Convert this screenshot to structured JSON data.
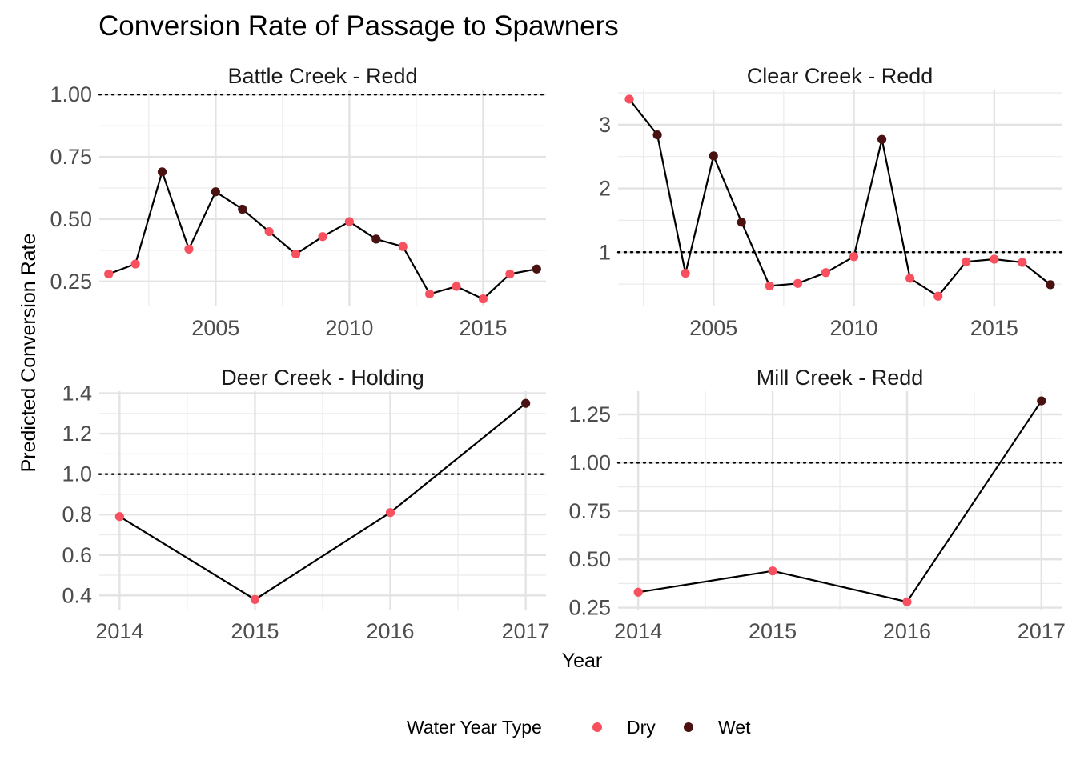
{
  "chart_data": {
    "type": "line",
    "title": "Conversion Rate of Passage to Spawners",
    "xlabel": "Year",
    "ylabel": "Predicted Conversion Rate",
    "reference_line": 1.0,
    "legend": {
      "title": "Water Year Type",
      "position": "bottom",
      "entries": [
        {
          "name": "Dry",
          "color": "#f8505e"
        },
        {
          "name": "Wet",
          "color": "#4a1111"
        }
      ]
    },
    "line_color": "#000000",
    "grid": true,
    "panels": [
      {
        "strip": "Battle Creek - Redd",
        "xlim": [
          2000.65,
          2017.35
        ],
        "ylim": [
          0.15,
          1.02
        ],
        "x_ticks": [
          2005,
          2010,
          2015
        ],
        "x_tick_labels": [
          "2005",
          "2010",
          "2015"
        ],
        "y_ticks": [
          0.25,
          0.5,
          0.75,
          1.0
        ],
        "y_tick_labels": [
          "0.25",
          "0.50",
          "0.75",
          "1.00"
        ],
        "points": [
          {
            "x": 2001,
            "y": 0.28,
            "type": "Dry"
          },
          {
            "x": 2002,
            "y": 0.32,
            "type": "Dry"
          },
          {
            "x": 2003,
            "y": 0.69,
            "type": "Wet"
          },
          {
            "x": 2004,
            "y": 0.38,
            "type": "Dry"
          },
          {
            "x": 2005,
            "y": 0.61,
            "type": "Wet"
          },
          {
            "x": 2006,
            "y": 0.54,
            "type": "Wet"
          },
          {
            "x": 2007,
            "y": 0.45,
            "type": "Dry"
          },
          {
            "x": 2008,
            "y": 0.36,
            "type": "Dry"
          },
          {
            "x": 2009,
            "y": 0.43,
            "type": "Dry"
          },
          {
            "x": 2010,
            "y": 0.49,
            "type": "Dry"
          },
          {
            "x": 2011,
            "y": 0.42,
            "type": "Wet"
          },
          {
            "x": 2012,
            "y": 0.39,
            "type": "Dry"
          },
          {
            "x": 2013,
            "y": 0.2,
            "type": "Dry"
          },
          {
            "x": 2014,
            "y": 0.23,
            "type": "Dry"
          },
          {
            "x": 2015,
            "y": 0.18,
            "type": "Dry"
          },
          {
            "x": 2016,
            "y": 0.28,
            "type": "Dry"
          },
          {
            "x": 2017,
            "y": 0.3,
            "type": "Wet"
          }
        ]
      },
      {
        "strip": "Clear Creek - Redd",
        "xlim": [
          2001.6,
          2017.4
        ],
        "ylim": [
          0.15,
          3.55
        ],
        "x_ticks": [
          2005,
          2010,
          2015
        ],
        "x_tick_labels": [
          "2005",
          "2010",
          "2015"
        ],
        "y_ticks": [
          1,
          2,
          3
        ],
        "y_tick_labels": [
          "1",
          "2",
          "3"
        ],
        "points": [
          {
            "x": 2002,
            "y": 3.4,
            "type": "Dry"
          },
          {
            "x": 2003,
            "y": 2.84,
            "type": "Wet"
          },
          {
            "x": 2004,
            "y": 0.67,
            "type": "Dry"
          },
          {
            "x": 2005,
            "y": 2.51,
            "type": "Wet"
          },
          {
            "x": 2006,
            "y": 1.47,
            "type": "Wet"
          },
          {
            "x": 2007,
            "y": 0.47,
            "type": "Dry"
          },
          {
            "x": 2008,
            "y": 0.51,
            "type": "Dry"
          },
          {
            "x": 2009,
            "y": 0.68,
            "type": "Dry"
          },
          {
            "x": 2010,
            "y": 0.93,
            "type": "Dry"
          },
          {
            "x": 2011,
            "y": 2.77,
            "type": "Wet"
          },
          {
            "x": 2012,
            "y": 0.59,
            "type": "Dry"
          },
          {
            "x": 2013,
            "y": 0.31,
            "type": "Dry"
          },
          {
            "x": 2014,
            "y": 0.85,
            "type": "Dry"
          },
          {
            "x": 2015,
            "y": 0.89,
            "type": "Dry"
          },
          {
            "x": 2016,
            "y": 0.84,
            "type": "Dry"
          },
          {
            "x": 2017,
            "y": 0.49,
            "type": "Wet"
          }
        ]
      },
      {
        "strip": "Deer Creek - Holding",
        "xlim": [
          2013.85,
          2017.15
        ],
        "ylim": [
          0.33,
          1.41
        ],
        "x_ticks": [
          2014,
          2015,
          2016,
          2017
        ],
        "x_tick_labels": [
          "2014",
          "2015",
          "2016",
          "2017"
        ],
        "y_ticks": [
          0.4,
          0.6,
          0.8,
          1.0,
          1.2,
          1.4
        ],
        "y_tick_labels": [
          "0.4",
          "0.6",
          "0.8",
          "1.0",
          "1.2",
          "1.4"
        ],
        "points": [
          {
            "x": 2014,
            "y": 0.79,
            "type": "Dry"
          },
          {
            "x": 2015,
            "y": 0.38,
            "type": "Dry"
          },
          {
            "x": 2016,
            "y": 0.81,
            "type": "Dry"
          },
          {
            "x": 2017,
            "y": 1.35,
            "type": "Wet"
          }
        ]
      },
      {
        "strip": "Mill Creek - Redd",
        "xlim": [
          2013.85,
          2017.15
        ],
        "ylim": [
          0.24,
          1.37
        ],
        "x_ticks": [
          2014,
          2015,
          2016,
          2017
        ],
        "x_tick_labels": [
          "2014",
          "2015",
          "2016",
          "2017"
        ],
        "y_ticks": [
          0.25,
          0.5,
          0.75,
          1.0,
          1.25
        ],
        "y_tick_labels": [
          "0.25",
          "0.50",
          "0.75",
          "1.00",
          "1.25"
        ],
        "points": [
          {
            "x": 2014,
            "y": 0.33,
            "type": "Dry"
          },
          {
            "x": 2015,
            "y": 0.44,
            "type": "Dry"
          },
          {
            "x": 2016,
            "y": 0.28,
            "type": "Dry"
          },
          {
            "x": 2017,
            "y": 1.32,
            "type": "Wet"
          }
        ]
      }
    ]
  }
}
